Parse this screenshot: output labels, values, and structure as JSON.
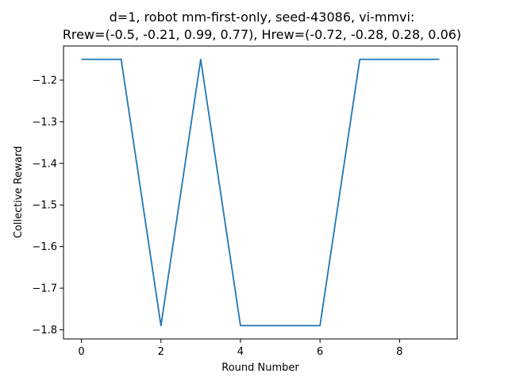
{
  "chart_data": {
    "type": "line",
    "title_line1": "d=1, robot mm-first-only, seed-43086, vi-mmvi:",
    "title_line2": "Rrew=(-0.5, -0.21, 0.99, 0.77), Hrew=(-0.72, -0.28, 0.28, 0.06)",
    "xlabel": "Round Number",
    "ylabel": "Collective Reward",
    "x": [
      0,
      1,
      2,
      3,
      4,
      5,
      6,
      7,
      8,
      9
    ],
    "series": [
      {
        "values": [
          -1.15,
          -1.15,
          -1.79,
          -1.15,
          -1.79,
          -1.79,
          -1.79,
          -1.15,
          -1.15,
          -1.15
        ],
        "color": "#1f77b4"
      }
    ],
    "xlim": [
      -0.45,
      9.45
    ],
    "ylim": [
      -1.822,
      -1.118
    ],
    "xticks": [
      0,
      2,
      4,
      6,
      8
    ],
    "xtick_labels": [
      "0",
      "2",
      "4",
      "6",
      "8"
    ],
    "yticks": [
      -1.2,
      -1.3,
      -1.4,
      -1.5,
      -1.6,
      -1.7,
      -1.8
    ],
    "ytick_labels": [
      "−1.2",
      "−1.3",
      "−1.4",
      "−1.5",
      "−1.6",
      "−1.7",
      "−1.8"
    ],
    "grid": false
  }
}
